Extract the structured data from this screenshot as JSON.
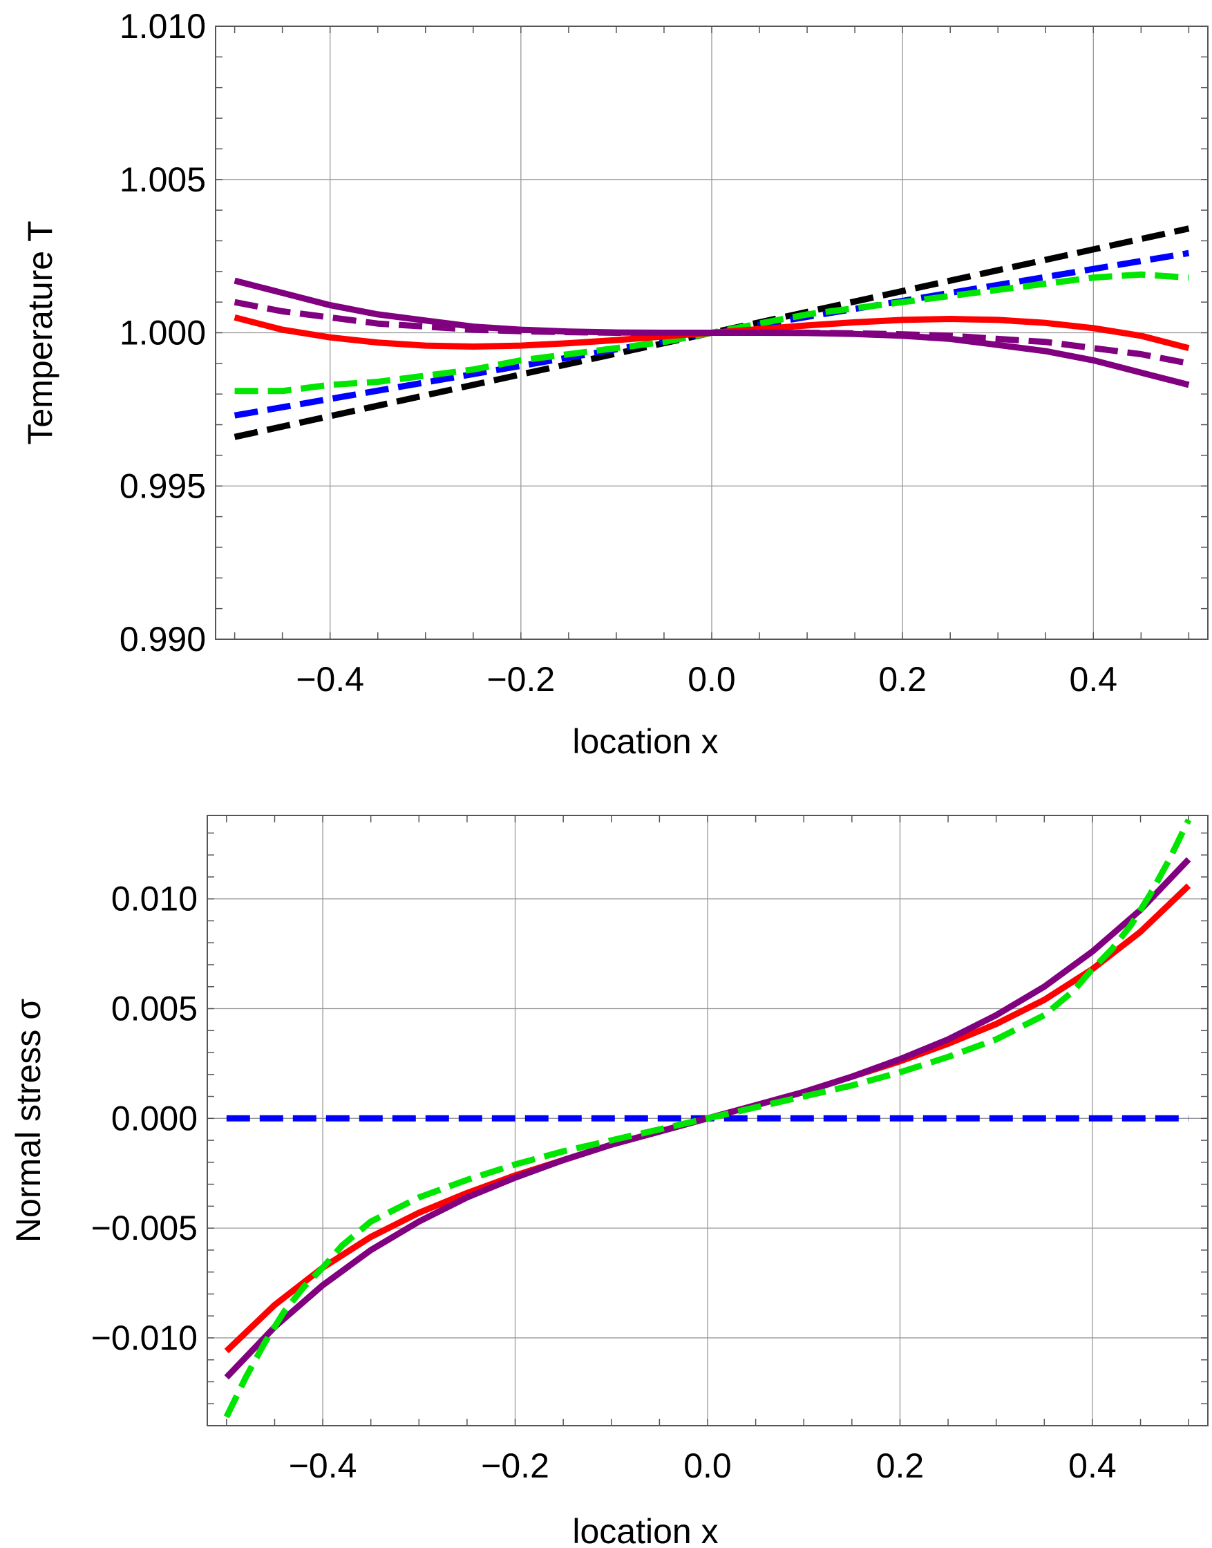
{
  "chart_data": [
    {
      "type": "line",
      "title": "",
      "xlabel": "location   x",
      "ylabel": "Temperature   T",
      "xlim": [
        -0.52,
        0.52
      ],
      "ylim": [
        0.99,
        1.01
      ],
      "grid": true,
      "xticks": [
        -0.4,
        -0.2,
        0.0,
        0.2,
        0.4
      ],
      "xtick_labels": [
        "−0.4",
        "−0.2",
        "0.0",
        "0.2",
        "0.4"
      ],
      "yticks": [
        0.99,
        0.995,
        1.0,
        1.005,
        1.01
      ],
      "ytick_labels": [
        "0.990",
        "0.995",
        "1.000",
        "1.005",
        "1.010"
      ],
      "series": [
        {
          "name": "black dashed",
          "color": "#000000",
          "dashed": true,
          "x": [
            -0.5,
            0.0,
            0.5
          ],
          "y": [
            0.9966,
            1.0,
            1.0034
          ]
        },
        {
          "name": "blue dashed",
          "color": "#0000ff",
          "dashed": true,
          "x": [
            -0.5,
            0.0,
            0.5
          ],
          "y": [
            0.9973,
            1.0,
            1.0026
          ]
        },
        {
          "name": "green dashed",
          "color": "#00e600",
          "dashed": true,
          "x": [
            -0.5,
            -0.45,
            -0.4,
            -0.35,
            -0.3,
            -0.25,
            -0.2,
            -0.15,
            -0.1,
            -0.05,
            0.0,
            0.05,
            0.1,
            0.15,
            0.2,
            0.25,
            0.3,
            0.35,
            0.4,
            0.45,
            0.5
          ],
          "y": [
            0.9981,
            0.9981,
            0.9983,
            0.9984,
            0.9986,
            0.9988,
            0.9991,
            0.9993,
            0.9995,
            0.9997,
            1.0,
            1.0003,
            1.0006,
            1.0008,
            1.001,
            1.0012,
            1.0014,
            1.0016,
            1.0018,
            1.0019,
            1.0018
          ]
        },
        {
          "name": "red solid",
          "color": "#ff0000",
          "dashed": false,
          "x": [
            -0.5,
            -0.45,
            -0.4,
            -0.35,
            -0.3,
            -0.25,
            -0.2,
            -0.15,
            -0.1,
            -0.05,
            0.0,
            0.05,
            0.1,
            0.15,
            0.2,
            0.25,
            0.3,
            0.35,
            0.4,
            0.45,
            0.5
          ],
          "y": [
            1.0005,
            1.0001,
            0.99985,
            0.99968,
            0.99958,
            0.99955,
            0.99958,
            0.99966,
            0.99976,
            0.99988,
            1.0,
            1.00012,
            1.00024,
            1.00034,
            1.00042,
            1.00045,
            1.00042,
            1.00032,
            1.00015,
            0.9999,
            0.9995
          ]
        },
        {
          "name": "purple dashed",
          "color": "#800080",
          "dashed": true,
          "x": [
            -0.5,
            -0.45,
            -0.4,
            -0.35,
            -0.3,
            -0.25,
            -0.2,
            -0.15,
            -0.1,
            -0.05,
            0.0,
            0.05,
            0.1,
            0.15,
            0.2,
            0.25,
            0.3,
            0.35,
            0.4,
            0.45,
            0.5
          ],
          "y": [
            1.001,
            1.0007,
            1.0005,
            1.0003,
            1.0002,
            1.0001,
            1.00005,
            1.00002,
            1.0,
            1.0,
            1.0,
            1.0,
            1.0,
            0.99998,
            0.99995,
            0.9999,
            0.9998,
            0.9997,
            0.9995,
            0.9993,
            0.999
          ]
        },
        {
          "name": "purple solid",
          "color": "#800080",
          "dashed": false,
          "x": [
            -0.5,
            -0.45,
            -0.4,
            -0.35,
            -0.3,
            -0.25,
            -0.2,
            -0.15,
            -0.1,
            -0.05,
            0.0,
            0.05,
            0.1,
            0.15,
            0.2,
            0.25,
            0.3,
            0.35,
            0.4,
            0.45,
            0.5
          ],
          "y": [
            1.0017,
            1.0013,
            1.0009,
            1.0006,
            1.0004,
            1.0002,
            1.0001,
            1.00004,
            1.00001,
            1.0,
            1.0,
            1.0,
            0.99999,
            0.99996,
            0.9999,
            0.9998,
            0.9996,
            0.9994,
            0.9991,
            0.9987,
            0.9983
          ]
        }
      ]
    },
    {
      "type": "line",
      "title": "",
      "xlabel": "location   x",
      "ylabel": "Normal stress  σ",
      "xlim": [
        -0.52,
        0.52
      ],
      "ylim": [
        -0.014,
        0.0138
      ],
      "grid": true,
      "xticks": [
        -0.4,
        -0.2,
        0.0,
        0.2,
        0.4
      ],
      "xtick_labels": [
        "−0.4",
        "−0.2",
        "0.0",
        "0.2",
        "0.4"
      ],
      "yticks": [
        -0.01,
        -0.005,
        0.0,
        0.005,
        0.01
      ],
      "ytick_labels": [
        "−0.010",
        "−0.005",
        "0.000",
        "0.005",
        "0.010"
      ],
      "series": [
        {
          "name": "blue dashed",
          "color": "#0000ff",
          "dashed": true,
          "x": [
            -0.5,
            0.5
          ],
          "y": [
            0.0,
            0.0
          ]
        },
        {
          "name": "red solid",
          "color": "#ff0000",
          "dashed": false,
          "x": [
            -0.5,
            -0.45,
            -0.4,
            -0.35,
            -0.3,
            -0.25,
            -0.2,
            -0.15,
            -0.1,
            -0.05,
            0.0,
            0.05,
            0.1,
            0.15,
            0.2,
            0.25,
            0.3,
            0.35,
            0.4,
            0.45,
            0.5
          ],
          "y": [
            -0.0106,
            -0.0085,
            -0.0068,
            -0.0054,
            -0.0043,
            -0.0034,
            -0.0026,
            -0.0019,
            -0.0012,
            -0.0006,
            0.0,
            0.0006,
            0.0012,
            0.0019,
            0.0026,
            0.0034,
            0.0043,
            0.0054,
            0.0068,
            0.0085,
            0.0106
          ]
        },
        {
          "name": "purple solid",
          "color": "#800080",
          "dashed": false,
          "x": [
            -0.5,
            -0.45,
            -0.4,
            -0.35,
            -0.3,
            -0.25,
            -0.2,
            -0.15,
            -0.1,
            -0.05,
            0.0,
            0.05,
            0.1,
            0.15,
            0.2,
            0.25,
            0.3,
            0.35,
            0.4,
            0.45,
            0.5
          ],
          "y": [
            -0.0118,
            -0.0095,
            -0.0076,
            -0.006,
            -0.0047,
            -0.0036,
            -0.0027,
            -0.0019,
            -0.0012,
            -0.0006,
            0.0,
            0.0006,
            0.0012,
            0.0019,
            0.0027,
            0.0036,
            0.0047,
            0.006,
            0.0076,
            0.0095,
            0.0118
          ]
        },
        {
          "name": "green dashed",
          "color": "#00e600",
          "dashed": true,
          "x": [
            -0.5,
            -0.48,
            -0.46,
            -0.44,
            -0.42,
            -0.4,
            -0.38,
            -0.35,
            -0.3,
            -0.25,
            -0.2,
            -0.15,
            -0.1,
            -0.05,
            0.0,
            0.05,
            0.1,
            0.15,
            0.2,
            0.25,
            0.3,
            0.35,
            0.38,
            0.4,
            0.42,
            0.44,
            0.46,
            0.48,
            0.5
          ],
          "y": [
            -0.0136,
            -0.0118,
            -0.0102,
            -0.0088,
            -0.0077,
            -0.0068,
            -0.0058,
            -0.0047,
            -0.0036,
            -0.0028,
            -0.0021,
            -0.0015,
            -0.001,
            -0.0005,
            0.0,
            0.0005,
            0.001,
            0.0015,
            0.0021,
            0.0028,
            0.0036,
            0.0047,
            0.0058,
            0.0068,
            0.0077,
            0.0088,
            0.0102,
            0.0118,
            0.0136
          ]
        }
      ]
    }
  ]
}
